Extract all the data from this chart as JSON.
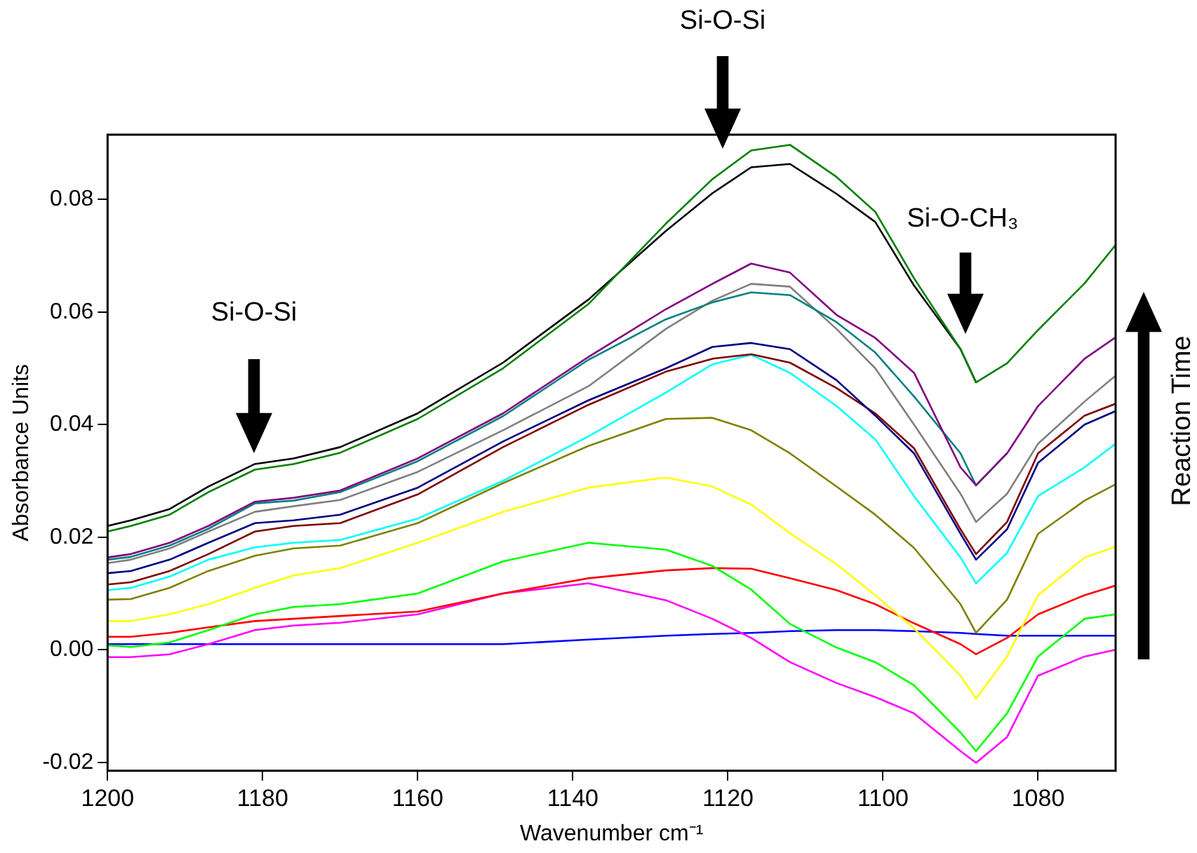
{
  "chart_data": {
    "type": "line",
    "xlabel": "Wavenumber cm⁻¹",
    "ylabel": "Absorbance Units",
    "x": [
      1200,
      1197,
      1192,
      1187,
      1181,
      1176,
      1170,
      1160,
      1149,
      1138,
      1128,
      1122,
      1117,
      1112,
      1106,
      1101,
      1096,
      1090,
      1088,
      1084,
      1080,
      1074,
      1070
    ],
    "xlim": [
      1200,
      1070
    ],
    "xticks": [
      1200,
      1180,
      1160,
      1140,
      1120,
      1100,
      1080
    ],
    "ylim": [
      -0.0215,
      0.0915
    ],
    "yticks": [
      {
        "value": -0.02,
        "label": "-0.02"
      },
      {
        "value": 0,
        "label": "0.00"
      },
      {
        "value": 0.02,
        "label": "0.02"
      },
      {
        "value": 0.04,
        "label": "0.04"
      },
      {
        "value": 0.06,
        "label": "0.06"
      },
      {
        "value": 0.08,
        "label": "0.08"
      }
    ],
    "grid": false,
    "legend": false,
    "series": [
      {
        "color": "#0000ff",
        "values": [
          0.001,
          0.001,
          0.001,
          0.001,
          0.001,
          0.001,
          0.001,
          0.001,
          0.001,
          0.0018,
          0.0025,
          0.0028,
          0.003,
          0.0033,
          0.0035,
          0.0035,
          0.0033,
          0.003,
          0.0028,
          0.0025,
          0.0025,
          0.0025,
          0.0025
        ]
      },
      {
        "color": "#ff00ff",
        "values": [
          -0.0013,
          -0.0013,
          -0.0008,
          0.001,
          0.0035,
          0.0043,
          0.0048,
          0.0063,
          0.01,
          0.0118,
          0.0088,
          0.0055,
          0.0021,
          -0.0022,
          -0.0059,
          -0.0084,
          -0.0113,
          -0.018,
          -0.0201,
          -0.0155,
          -0.0046,
          -0.0012,
          0.0
        ]
      },
      {
        "color": "#ff0000",
        "values": [
          0.0023,
          0.0023,
          0.003,
          0.004,
          0.0051,
          0.0055,
          0.006,
          0.0068,
          0.01,
          0.0127,
          0.0141,
          0.0145,
          0.0144,
          0.0127,
          0.0106,
          0.0081,
          0.0047,
          0.001,
          -0.0008,
          0.0021,
          0.0063,
          0.0097,
          0.0114
        ]
      },
      {
        "color": "#00ff00",
        "values": [
          0.0008,
          0.0005,
          0.0013,
          0.0035,
          0.0063,
          0.0076,
          0.0081,
          0.01,
          0.0157,
          0.019,
          0.0178,
          0.0149,
          0.0107,
          0.0046,
          0.0004,
          -0.0022,
          -0.0063,
          -0.0147,
          -0.018,
          -0.0113,
          -0.0012,
          0.0055,
          0.0063
        ]
      },
      {
        "color": "#ffff00",
        "values": [
          0.0051,
          0.0051,
          0.0063,
          0.0081,
          0.011,
          0.0132,
          0.0145,
          0.019,
          0.0245,
          0.0288,
          0.0306,
          0.029,
          0.0258,
          0.0207,
          0.0152,
          0.0097,
          0.0038,
          -0.0046,
          -0.0087,
          -0.0012,
          0.0097,
          0.0164,
          0.0183
        ]
      },
      {
        "color": "#808000",
        "values": [
          0.0089,
          0.009,
          0.011,
          0.014,
          0.0167,
          0.018,
          0.0185,
          0.0225,
          0.0296,
          0.0362,
          0.041,
          0.0412,
          0.039,
          0.0349,
          0.029,
          0.024,
          0.0181,
          0.0081,
          0.003,
          0.0089,
          0.0206,
          0.0265,
          0.0294
        ]
      },
      {
        "color": "#00ffff",
        "values": [
          0.0106,
          0.011,
          0.013,
          0.016,
          0.0182,
          0.019,
          0.0195,
          0.0233,
          0.03,
          0.0379,
          0.0457,
          0.0507,
          0.0524,
          0.0492,
          0.0433,
          0.0374,
          0.0273,
          0.0164,
          0.0118,
          0.0172,
          0.0273,
          0.0324,
          0.0366
        ]
      },
      {
        "color": "#800000",
        "values": [
          0.0116,
          0.012,
          0.014,
          0.017,
          0.021,
          0.022,
          0.0225,
          0.0276,
          0.036,
          0.0435,
          0.0494,
          0.0517,
          0.0525,
          0.051,
          0.0465,
          0.042,
          0.0358,
          0.0214,
          0.017,
          0.0227,
          0.0349,
          0.0416,
          0.0437
        ]
      },
      {
        "color": "#000080",
        "values": [
          0.0136,
          0.014,
          0.016,
          0.019,
          0.0225,
          0.023,
          0.024,
          0.0288,
          0.037,
          0.0443,
          0.05,
          0.0538,
          0.0545,
          0.0534,
          0.0479,
          0.0416,
          0.0349,
          0.0206,
          0.016,
          0.0214,
          0.0332,
          0.04,
          0.0424
        ]
      },
      {
        "color": "#808080",
        "values": [
          0.0154,
          0.016,
          0.018,
          0.021,
          0.0245,
          0.0255,
          0.0266,
          0.0316,
          0.039,
          0.0468,
          0.057,
          0.062,
          0.065,
          0.0645,
          0.057,
          0.05,
          0.04,
          0.0277,
          0.0227,
          0.0277,
          0.0366,
          0.0441,
          0.0487
        ]
      },
      {
        "color": "#008080",
        "values": [
          0.016,
          0.0165,
          0.0185,
          0.0215,
          0.026,
          0.0265,
          0.028,
          0.0335,
          0.0415,
          0.0515,
          0.0587,
          0.0617,
          0.0635,
          0.063,
          0.0582,
          0.0528,
          0.045,
          0.0349,
          0.0292,
          0.0349,
          null,
          null,
          null
        ]
      },
      {
        "color": "#800080",
        "values": [
          0.0164,
          0.017,
          0.019,
          0.022,
          0.0263,
          0.027,
          0.0283,
          0.034,
          0.042,
          0.052,
          0.0605,
          0.065,
          0.0686,
          0.067,
          0.0595,
          0.0554,
          0.0492,
          0.0324,
          0.0292,
          0.0349,
          0.0433,
          0.0517,
          0.0555
        ]
      },
      {
        "color": "#000000",
        "values": [
          0.022,
          0.023,
          0.025,
          0.029,
          0.033,
          0.034,
          0.036,
          0.042,
          0.051,
          0.0622,
          0.0744,
          0.0811,
          0.0857,
          0.0863,
          0.081,
          0.076,
          0.0647,
          0.0534,
          0.0475,
          null,
          null,
          null,
          null
        ]
      },
      {
        "color": "#008000",
        "values": [
          0.021,
          0.022,
          0.024,
          0.028,
          0.032,
          0.033,
          0.035,
          0.041,
          0.05,
          0.0614,
          0.0757,
          0.0836,
          0.0887,
          0.0897,
          0.084,
          0.0778,
          0.066,
          0.0534,
          0.0475,
          0.0509,
          0.0568,
          0.0651,
          0.0719
        ]
      }
    ],
    "annotations": [
      "Si-O-Si",
      "Si-O-Si",
      "Si-O-CH₃",
      "Reaction Time"
    ]
  }
}
